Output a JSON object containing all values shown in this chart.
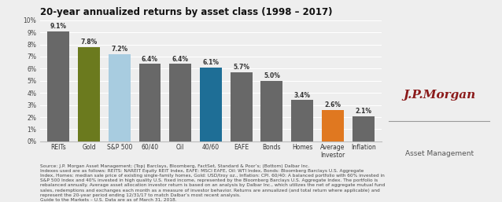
{
  "title": "20-year annualized returns by asset class (1998 – 2017)",
  "categories": [
    "REITs",
    "Gold",
    "S&P 500",
    "60/40",
    "Oil",
    "40/60",
    "EAFE",
    "Bonds",
    "Homes",
    "Average\nInvestor",
    "Inflation"
  ],
  "values": [
    9.1,
    7.8,
    7.2,
    6.4,
    6.4,
    6.1,
    5.7,
    5.0,
    3.4,
    2.6,
    2.1
  ],
  "bar_colors": [
    "#686868",
    "#6b7a1e",
    "#a8cce0",
    "#686868",
    "#686868",
    "#1e6e96",
    "#686868",
    "#686868",
    "#686868",
    "#e07820",
    "#686868"
  ],
  "ylim": [
    0,
    10
  ],
  "yticks": [
    0,
    1,
    2,
    3,
    4,
    5,
    6,
    7,
    8,
    9,
    10
  ],
  "ytick_labels": [
    "0%",
    "1%",
    "2%",
    "3%",
    "4%",
    "5%",
    "6%",
    "7%",
    "8%",
    "9%",
    "10%"
  ],
  "background_color": "#eeeeee",
  "source_line1": "Source: J.P. Morgan Asset Management; (Top) Barclays, Bloomberg, FactSet, Standard & Poor’s; (Bottom) Dalbar Inc.",
  "source_line2": "Indexes used are as follows: REITS: NAREIT Equity REIT Index, EAFE: MSCI EAFE, Oil: WTI Index, Bonds: Bloomberg Barclays U.S. Aggregate",
  "source_line3": "Index, Homes: median sale price of existing single-family homes, Gold: USD/troy oz., Inflation: CPI. 60/40: A balanced portfolio with 60% invested in",
  "source_line4": "S&P 500 Index and 40% invested in high quality U.S. fixed income, represented by the Bloomberg Barclays U.S. Aggregate Index. The portfolio is",
  "source_line5": "rebalanced annually. Average asset allocation investor return is based on an analysis by Dalbar Inc., which utilizes the net of aggregate mutual fund",
  "source_line6": "sales, redemptions and exchanges each month as a measure of investor behavior. Returns are annualized (and total return where applicable) and",
  "source_line7": "represent the 20-year period ending 12/31/17 to match Dalbar’s most recent analysis.",
  "source_line8": "Guide to the Markets – U.S. Data are as of March 31, 2018.",
  "title_fontsize": 8.5,
  "value_fontsize": 5.5,
  "tick_fontsize": 5.5,
  "label_fontsize": 5.5,
  "source_fontsize": 4.2,
  "jpm_color": "#8b1a1a",
  "jpm_line_color": "#999999"
}
